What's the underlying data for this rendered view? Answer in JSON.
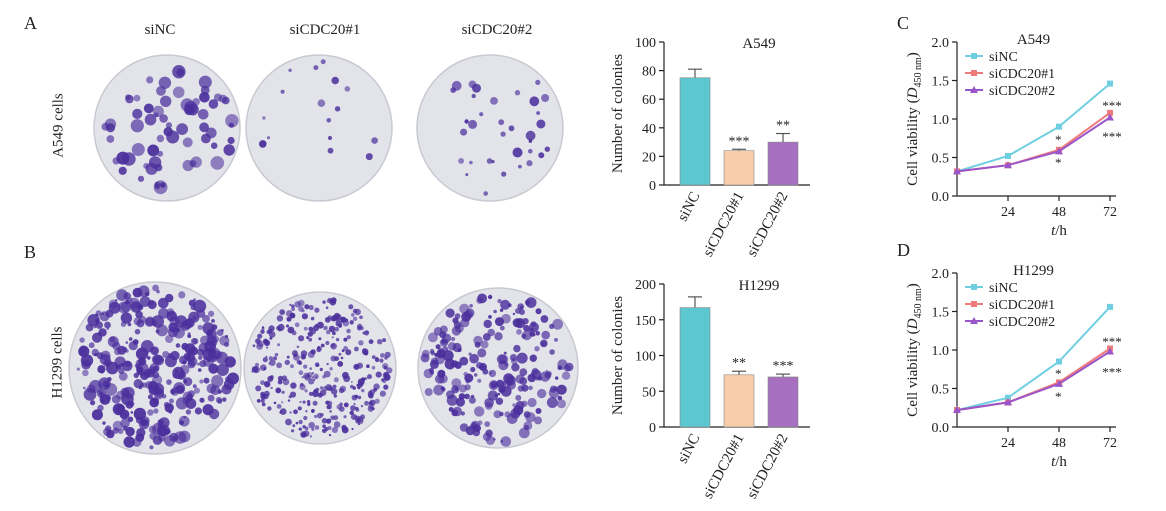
{
  "panels": {
    "A": "A",
    "B": "B",
    "C": "C",
    "D": "D"
  },
  "photo_headers": [
    "siNC",
    "siCDC20#1",
    "siCDC20#2"
  ],
  "row_labels": [
    "A549 cells",
    "H1299 cells"
  ],
  "colors": {
    "siNC": "#5cc7cf",
    "siCDC20#1": "#f8ceaa",
    "siCDC20#2": "#a66fbf",
    "line_siNC": "#6fcfe0",
    "line_siCDC20#1": "#ef7b7b",
    "line_siCDC20#2": "#9a55c8",
    "colony": "#4b2f9c",
    "dish": "#e3e3ea"
  },
  "chart_data": [
    {
      "id": "barA",
      "type": "bar",
      "title": "A549",
      "ylabel": "Number of colonies",
      "categories": [
        "siNC",
        "siCDC20#1",
        "siCDC20#2"
      ],
      "values": [
        75,
        24,
        30
      ],
      "errors": [
        6,
        1,
        6
      ],
      "significance": [
        "",
        "***",
        "**"
      ],
      "ylim": [
        0,
        100
      ],
      "yticks": [
        0,
        20,
        40,
        60,
        80,
        100
      ]
    },
    {
      "id": "barB",
      "type": "bar",
      "title": "H1299",
      "ylabel": "Number of colonies",
      "categories": [
        "siNC",
        "siCDC20#1",
        "siCDC20#2"
      ],
      "values": [
        167,
        73,
        70
      ],
      "errors": [
        15,
        5,
        4
      ],
      "significance": [
        "",
        "**",
        "***"
      ],
      "ylim": [
        0,
        200
      ],
      "yticks": [
        0,
        50,
        100,
        150,
        200
      ]
    },
    {
      "id": "lineC",
      "type": "line",
      "title": "A549",
      "ylabel": "Cell viability (D",
      "ylabel_sub": "450 nm",
      "ylabel_end": ")",
      "xlabel": "t",
      "xlabel_unit": "/h",
      "x": [
        0,
        24,
        48,
        72
      ],
      "xticks": [
        24,
        48,
        72
      ],
      "ylim": [
        0,
        2.0
      ],
      "yticks": [
        "0.0",
        "0.5",
        "1.0",
        "1.5",
        "2.0"
      ],
      "legend_position": "top-left",
      "series": [
        {
          "name": "siNC",
          "values": [
            0.32,
            0.52,
            0.9,
            1.46
          ]
        },
        {
          "name": "siCDC20#1",
          "values": [
            0.32,
            0.4,
            0.6,
            1.08
          ]
        },
        {
          "name": "siCDC20#2",
          "values": [
            0.32,
            0.4,
            0.58,
            1.02
          ]
        }
      ],
      "annotations": [
        {
          "x": 48,
          "y": 0.74,
          "text": "*"
        },
        {
          "x": 48,
          "y": 0.44,
          "text": "*"
        },
        {
          "x": 72,
          "y": 1.18,
          "text": "***"
        },
        {
          "x": 72,
          "y": 0.78,
          "text": "***"
        }
      ]
    },
    {
      "id": "lineD",
      "type": "line",
      "title": "H1299",
      "ylabel": "Cell viability (D",
      "ylabel_sub": "450 nm",
      "ylabel_end": ")",
      "xlabel": "t",
      "xlabel_unit": "/h",
      "x": [
        0,
        24,
        48,
        72
      ],
      "xticks": [
        24,
        48,
        72
      ],
      "ylim": [
        0,
        2.0
      ],
      "yticks": [
        "0.0",
        "0.5",
        "1.0",
        "1.5",
        "2.0"
      ],
      "legend_position": "top-left",
      "series": [
        {
          "name": "siNC",
          "values": [
            0.22,
            0.38,
            0.85,
            1.56
          ]
        },
        {
          "name": "siCDC20#1",
          "values": [
            0.22,
            0.32,
            0.58,
            1.02
          ]
        },
        {
          "name": "siCDC20#2",
          "values": [
            0.22,
            0.32,
            0.56,
            0.98
          ]
        }
      ],
      "annotations": [
        {
          "x": 48,
          "y": 0.7,
          "text": "*"
        },
        {
          "x": 48,
          "y": 0.4,
          "text": "*"
        },
        {
          "x": 72,
          "y": 1.12,
          "text": "***"
        },
        {
          "x": 72,
          "y": 0.72,
          "text": "***"
        }
      ]
    }
  ]
}
